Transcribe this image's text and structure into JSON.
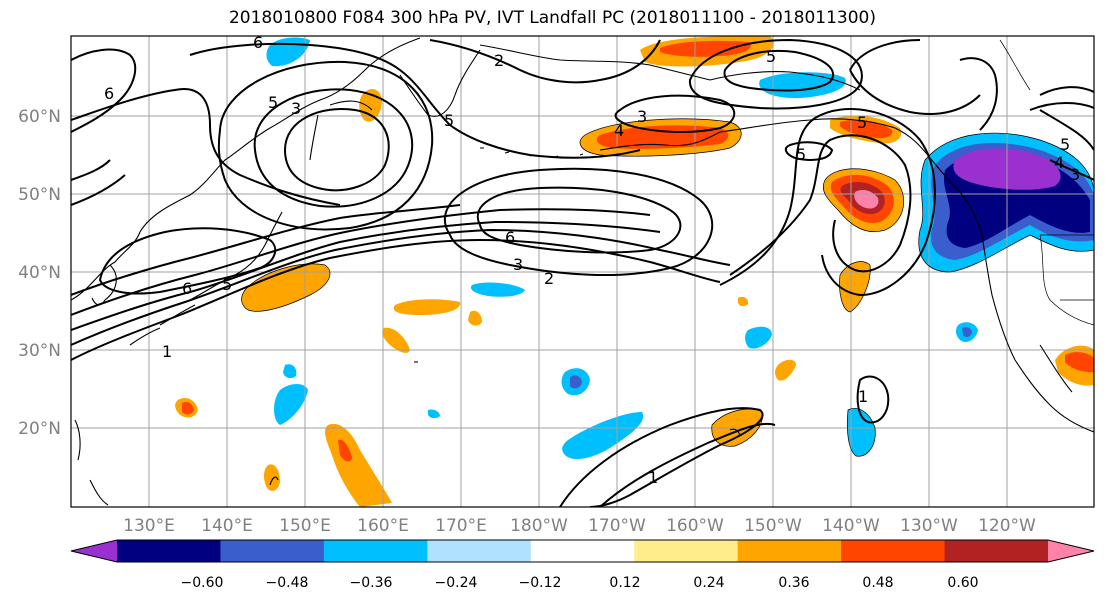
{
  "title": "2018010800 F084 300 hPa PV, IVT Landfall PC (2018011100 - 2018011300)",
  "lat_labels": [
    "60°N",
    "50°N",
    "40°N",
    "30°N",
    "20°N"
  ],
  "lon_labels": [
    "130°E",
    "140°E",
    "150°E",
    "160°E",
    "170°E",
    "180°W",
    "170°W",
    "160°W",
    "150°W",
    "140°W",
    "130°W",
    "120°W"
  ],
  "colorbar": {
    "colors": [
      "#9b30d0",
      "#000080",
      "#3a5fcd",
      "#00bfff",
      "#b0e2ff",
      "#ffffff",
      "#ffec8b",
      "#ffa500",
      "#ff4500",
      "#b22222",
      "#ff82ab"
    ],
    "tick_labels": [
      "−0.60",
      "−0.48",
      "−0.36",
      "−0.24",
      "−0.12",
      "0.12",
      "0.24",
      "0.36",
      "0.48",
      "0.60"
    ]
  },
  "contour_labels": [
    {
      "text": "6"
    },
    {
      "text": "6"
    },
    {
      "text": "5"
    },
    {
      "text": "3"
    },
    {
      "text": "2"
    },
    {
      "text": "5"
    },
    {
      "text": "4"
    },
    {
      "text": "3"
    },
    {
      "text": "5"
    },
    {
      "text": "5"
    },
    {
      "text": "5"
    },
    {
      "text": "6"
    },
    {
      "text": "3"
    },
    {
      "text": "2"
    },
    {
      "text": "6"
    },
    {
      "text": "5"
    },
    {
      "text": "1"
    },
    {
      "text": "1"
    },
    {
      "text": "1"
    },
    {
      "text": "5"
    },
    {
      "text": "3"
    },
    {
      "text": "4"
    }
  ]
}
